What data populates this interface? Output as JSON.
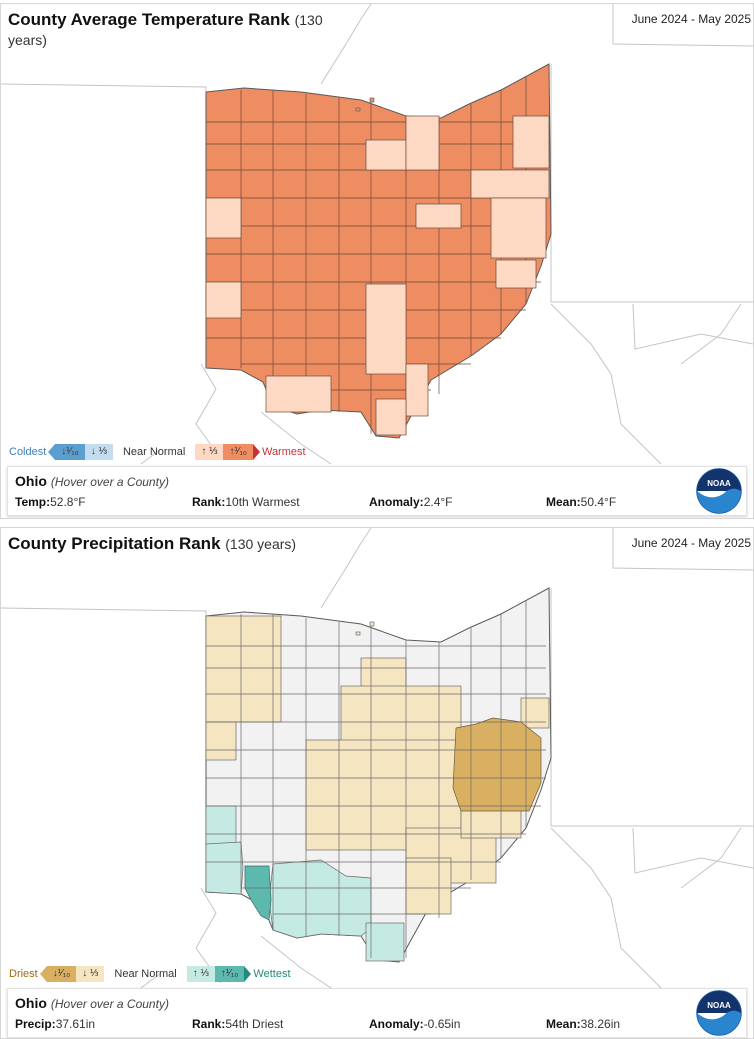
{
  "colors": {
    "warm_top": "#ee8c62",
    "warm_low": "#fdd9c4",
    "cold_top": "#5c9fcf",
    "cold_low": "#c4dcef",
    "dry_top": "#d9b062",
    "dry_low": "#f5e5c0",
    "wet_top": "#5db9ad",
    "wet_low": "#c5e9e3",
    "normal": "#f2f2f2",
    "county_line": "#5a5a5a",
    "basemap_line": "#c4c4c4"
  },
  "temperature": {
    "title": "County Average Temperature Rank",
    "subtitle": "(130 years)",
    "period": "June 2024 - May 2025",
    "legend": {
      "low_end": "Coldest",
      "low_top": "↓¹⁄₁₀",
      "low_third": "↓ ⅓",
      "normal": "Near Normal",
      "high_third": "↑ ⅓",
      "high_top": "↑¹⁄₁₀",
      "high_end": "Warmest"
    },
    "info": {
      "state": "Ohio",
      "hint": "(Hover over a County)",
      "value_label": "Temp:",
      "value": "52.8°F",
      "rank_label": "Rank:",
      "rank": "10th Warmest",
      "anomaly_label": "Anomaly:",
      "anomaly": "2.4°F",
      "mean_label": "Mean:",
      "mean": "50.4°F"
    }
  },
  "precipitation": {
    "title": "County Precipitation Rank",
    "subtitle": "(130 years)",
    "period": "June 2024 - May 2025",
    "legend": {
      "low_end": "Driest",
      "low_top": "↓¹⁄₁₀",
      "low_third": "↓ ⅓",
      "normal": "Near Normal",
      "high_third": "↑ ⅓",
      "high_top": "↑¹⁄₁₀",
      "high_end": "Wettest"
    },
    "info": {
      "state": "Ohio",
      "hint": "(Hover over a County)",
      "value_label": "Precip:",
      "value": "37.61in",
      "rank_label": "Rank:",
      "rank": "54th Driest",
      "anomaly_label": "Anomaly:",
      "anomaly": "-0.65in",
      "mean_label": "Mean:",
      "mean": "38.26in"
    }
  },
  "logo": {
    "text": "NOAA"
  }
}
